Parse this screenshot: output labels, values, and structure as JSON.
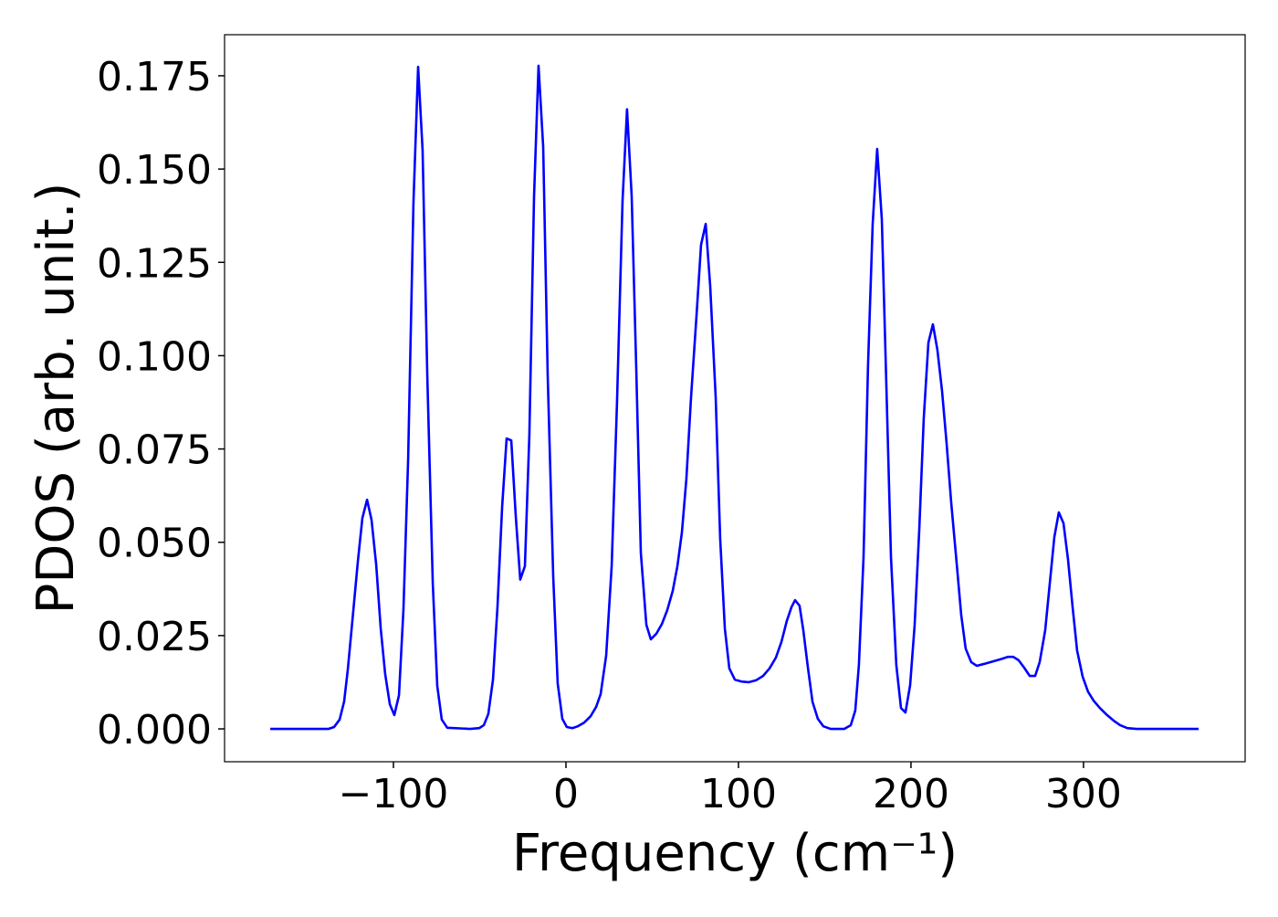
{
  "chart_data": {
    "type": "line",
    "xlabel": "Frequency (cm⁻¹)",
    "ylabel": "PDOS (arb. unit.)",
    "color": "#0000ff",
    "xlim": [
      -197.9,
      393.7
    ],
    "ylim": [
      -0.0088,
      0.186
    ],
    "xticks": [
      {
        "value": -100,
        "label": "−100"
      },
      0,
      100,
      200,
      300
    ],
    "yticks": [
      {
        "value": 0,
        "label": "0.000"
      },
      {
        "value": 0.025,
        "label": "0.025"
      },
      {
        "value": 0.05,
        "label": "0.050"
      },
      {
        "value": 0.075,
        "label": "0.075"
      },
      {
        "value": 0.1,
        "label": "0.100"
      },
      {
        "value": 0.125,
        "label": "0.125"
      },
      {
        "value": 0.15,
        "label": "0.150"
      },
      {
        "value": 0.175,
        "label": "0.175"
      }
    ],
    "x": [
      -171.4,
      -137.6,
      -134.4,
      -131.2,
      -128.6,
      -126.5,
      -123.8,
      -120.6,
      -118,
      -115.3,
      -112.7,
      -110,
      -107.4,
      -104.8,
      -102.1,
      -99.5,
      -96.8,
      -94.2,
      -91.5,
      -88.4,
      -85.7,
      -83.1,
      -80.4,
      -77.2,
      -74.6,
      -72,
      -68.8,
      -55.6,
      -50.3,
      -47.6,
      -45,
      -42.3,
      -39.7,
      -37,
      -34.4,
      -31.7,
      -29.1,
      -26.5,
      -23.8,
      -21.2,
      -18.5,
      -15.9,
      -13.2,
      -10.6,
      -7.4,
      -4.8,
      -2.1,
      0.5,
      3.7,
      6.9,
      10.6,
      14.3,
      17.5,
      20.1,
      23.3,
      26.5,
      29.6,
      32.8,
      35.4,
      38.1,
      40.7,
      43.4,
      46.6,
      49.2,
      52.4,
      55.6,
      58.7,
      61.9,
      64.6,
      67.2,
      69.8,
      72.5,
      75.7,
      78.3,
      81,
      83.6,
      86.8,
      89.4,
      92.1,
      94.7,
      97.9,
      101.6,
      105.8,
      110.1,
      114.3,
      118,
      121.7,
      124.9,
      128,
      130.7,
      132.8,
      135.4,
      137.6,
      140.2,
      142.9,
      146,
      149.2,
      153.4,
      161.4,
      165.1,
      167.7,
      169.8,
      172.5,
      175.1,
      177.8,
      180.4,
      183.1,
      185.7,
      188.4,
      191.5,
      194.2,
      196.8,
      199.5,
      202.1,
      204.8,
      207.4,
      210.1,
      212.7,
      215.3,
      218,
      220.6,
      223.3,
      226.5,
      229.1,
      231.7,
      234.9,
      238.1,
      242.3,
      247.6,
      252.9,
      256.1,
      259.3,
      262.4,
      265.6,
      268.8,
      272,
      274.6,
      277.8,
      280.4,
      283.1,
      285.7,
      288.4,
      291,
      293.7,
      296.3,
      299.5,
      302.6,
      305.8,
      309.5,
      313.2,
      317.5,
      321.2,
      325.4,
      330.7,
      366.7
    ],
    "values": [
      0,
      0,
      0.0005,
      0.0025,
      0.0073,
      0.0157,
      0.029,
      0.045,
      0.0565,
      0.0614,
      0.056,
      0.044,
      0.027,
      0.0147,
      0.0066,
      0.0037,
      0.009,
      0.032,
      0.072,
      0.141,
      0.1774,
      0.155,
      0.095,
      0.039,
      0.0115,
      0.0025,
      0.0003,
      0,
      0.0002,
      0.001,
      0.004,
      0.0132,
      0.0326,
      0.0595,
      0.0778,
      0.0773,
      0.057,
      0.04,
      0.0436,
      0.079,
      0.1427,
      0.1777,
      0.156,
      0.095,
      0.041,
      0.0122,
      0.0027,
      0.0005,
      0.0002,
      0.0007,
      0.0017,
      0.0034,
      0.0059,
      0.0093,
      0.0196,
      0.0436,
      0.0876,
      0.1415,
      0.166,
      0.1427,
      0.0974,
      0.0472,
      0.0279,
      0.024,
      0.0255,
      0.0281,
      0.0318,
      0.037,
      0.0436,
      0.0526,
      0.067,
      0.0888,
      0.1109,
      0.1297,
      0.1353,
      0.1187,
      0.0888,
      0.0509,
      0.0269,
      0.0162,
      0.0132,
      0.0127,
      0.0125,
      0.013,
      0.0142,
      0.0162,
      0.0191,
      0.0233,
      0.0289,
      0.0326,
      0.0345,
      0.033,
      0.0264,
      0.0166,
      0.0073,
      0.0027,
      0.0007,
      0,
      0,
      0.001,
      0.0049,
      0.0171,
      0.046,
      0.0974,
      0.1353,
      0.1554,
      0.1365,
      0.0925,
      0.046,
      0.0171,
      0.0056,
      0.0044,
      0.0117,
      0.0277,
      0.0534,
      0.0832,
      0.1035,
      0.1084,
      0.1016,
      0.0906,
      0.0768,
      0.0607,
      0.0443,
      0.0306,
      0.0215,
      0.0179,
      0.0169,
      0.0174,
      0.0181,
      0.0188,
      0.0193,
      0.0193,
      0.0184,
      0.0164,
      0.0142,
      0.0142,
      0.0179,
      0.0264,
      0.0387,
      0.0514,
      0.058,
      0.0551,
      0.0455,
      0.0326,
      0.021,
      0.014,
      0.01,
      0.0076,
      0.0056,
      0.0039,
      0.0022,
      0.001,
      0.0002,
      0,
      0
    ]
  }
}
